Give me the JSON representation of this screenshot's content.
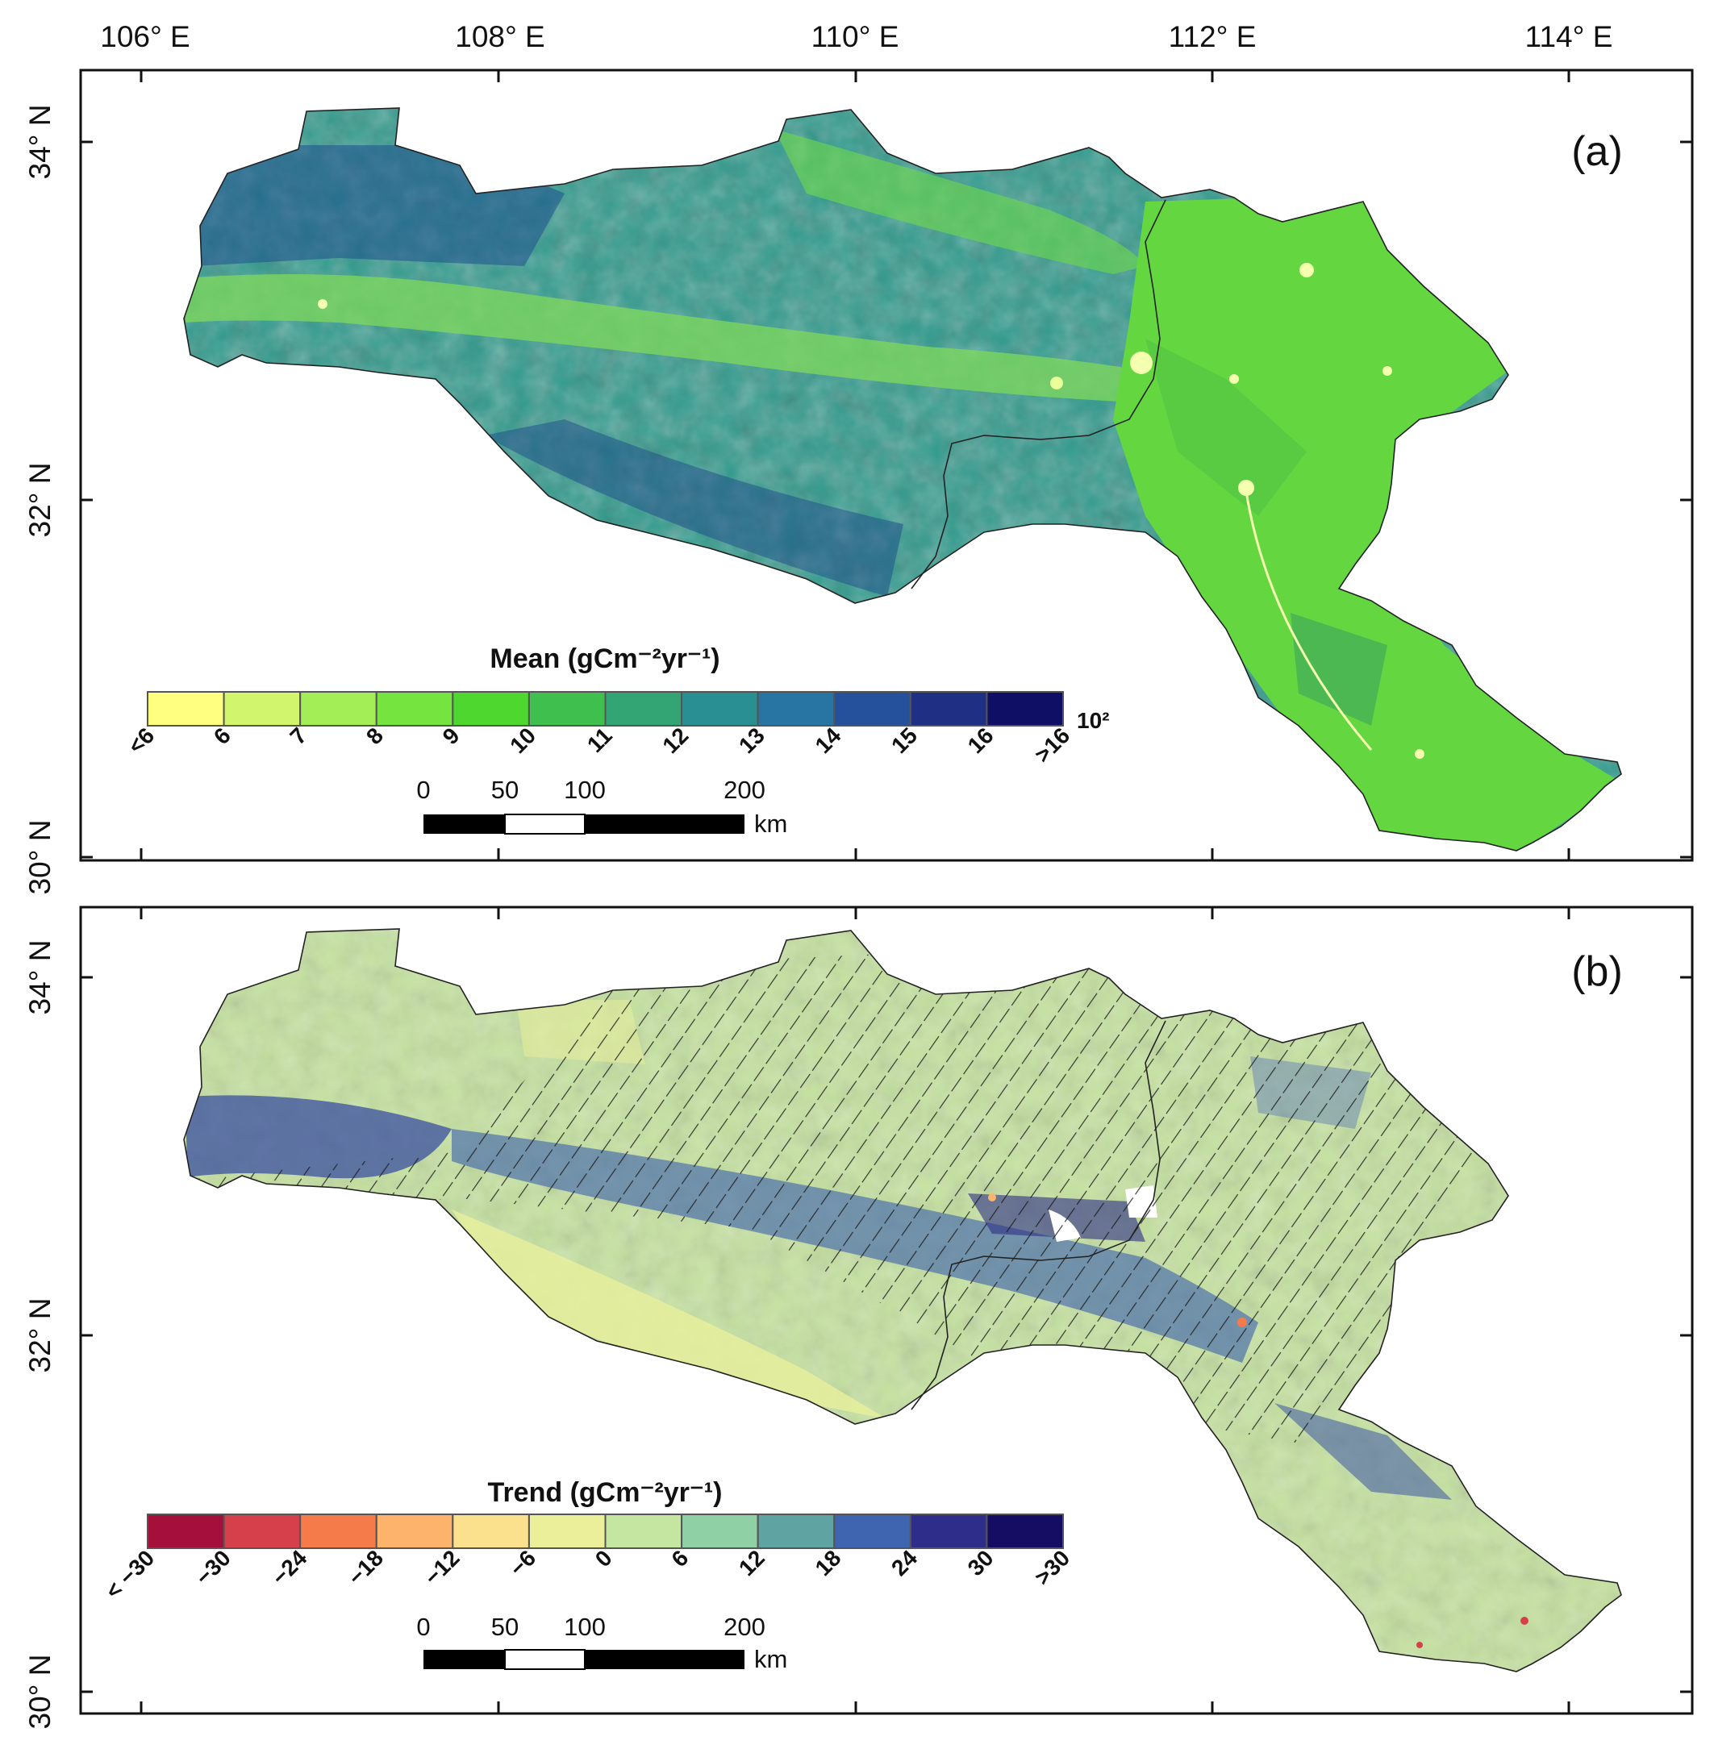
{
  "top_axis_labels": [
    "106° E",
    "108° E",
    "110° E",
    "112° E",
    "114° E"
  ],
  "left_axis_labels": [
    "34° N",
    "32° N",
    "30° N"
  ],
  "panel_a": {
    "tag": "(a)",
    "colorbar_title": "Mean (gCm⁻²yr⁻¹)",
    "colorbar_unit": "10²",
    "colorbar_labels": [
      "<6",
      "6",
      "7",
      "8",
      "9",
      "10",
      "11",
      "12",
      "13",
      "14",
      "15",
      "16",
      ">16"
    ],
    "colorbar_colors": [
      "#ffff80",
      "#d2f56e",
      "#a3ee57",
      "#75e43e",
      "#4ed72e",
      "#3fbf4d",
      "#33a474",
      "#2a8f92",
      "#2875a3",
      "#25519c",
      "#1f2f84",
      "#0f0f66"
    ]
  },
  "panel_b": {
    "tag": "(b)",
    "colorbar_title": "Trend (gCm⁻²yr⁻¹)",
    "colorbar_labels": [
      "< −30",
      "−30",
      "−24",
      "−18",
      "−12",
      "−6",
      "0",
      "6",
      "12",
      "18",
      "24",
      "30",
      ">30"
    ],
    "colorbar_colors": [
      "#a50f3c",
      "#d6404a",
      "#f57c4a",
      "#fdb36c",
      "#fbe08d",
      "#ecef9a",
      "#c5e6a0",
      "#8fd0a4",
      "#5fa3a3",
      "#4065b0",
      "#2e2e8a",
      "#150c63"
    ]
  },
  "scale_bar": {
    "labels": [
      "0",
      "50",
      "100",
      "200"
    ],
    "unit": "km"
  }
}
